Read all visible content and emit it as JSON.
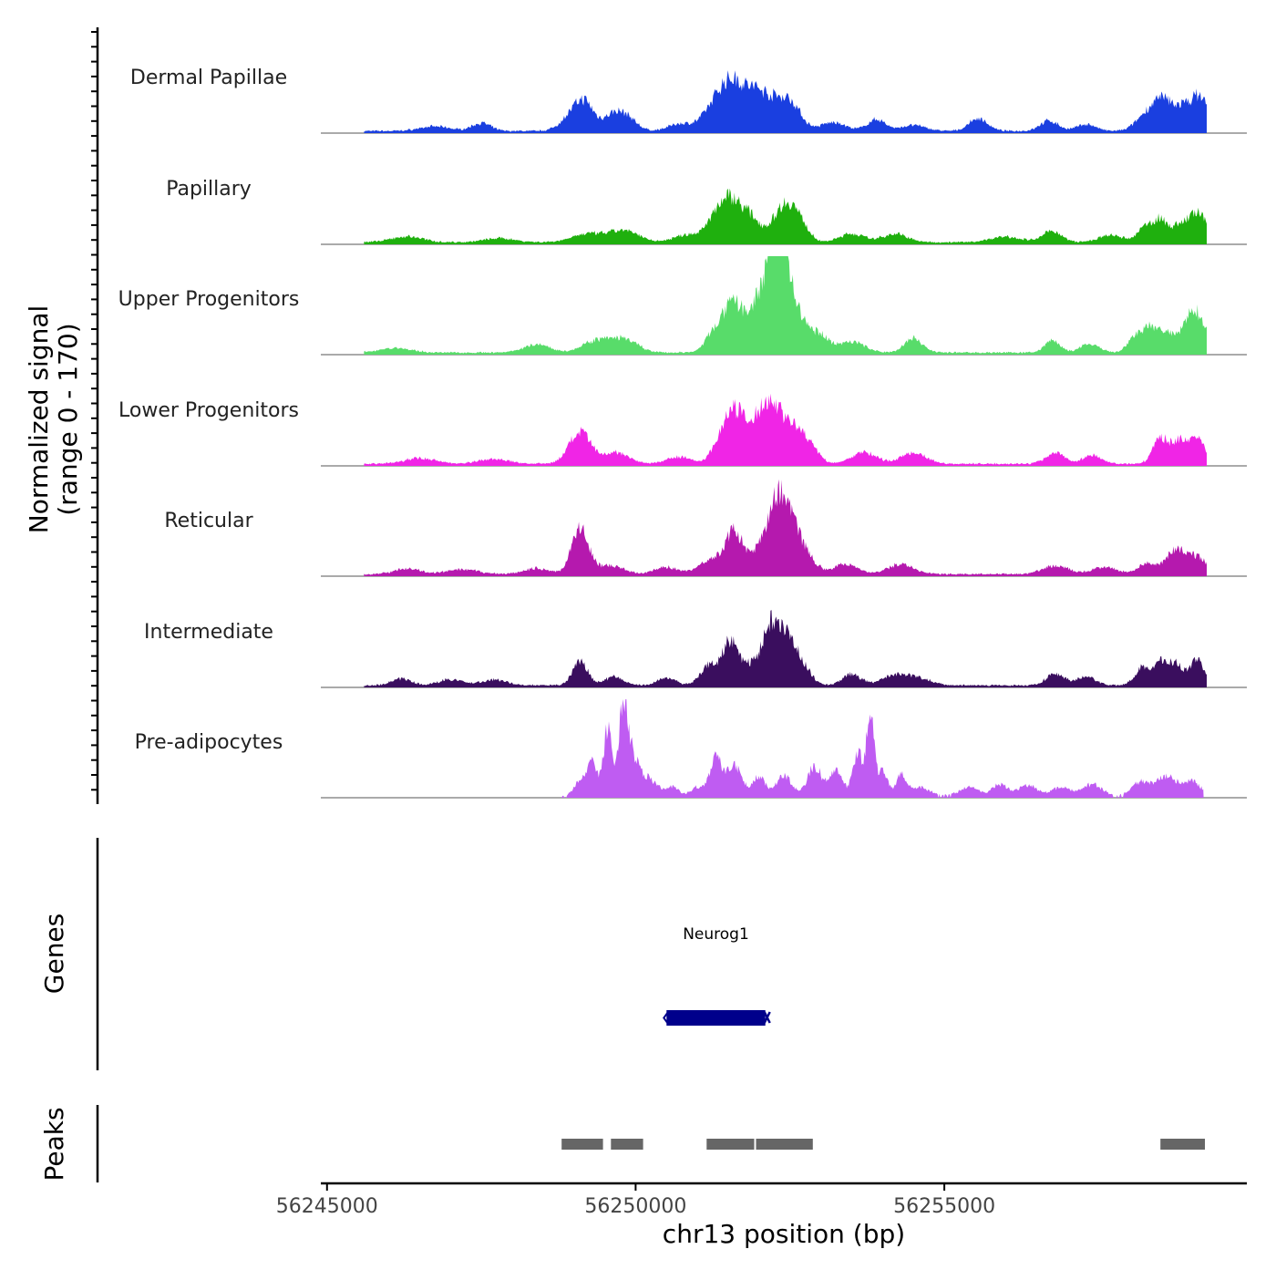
{
  "chart_data": {
    "type": "area",
    "title": "",
    "ylabel_line1": "Normalized signal",
    "ylabel_line2": "(range 0 - 170)",
    "ylim": [
      0,
      170
    ],
    "xlabel": "chr13 position (bp)",
    "xlim": [
      56244900,
      56259900
    ],
    "x_ticks": [
      56245000,
      56250000,
      56255000
    ],
    "x_tick_labels": [
      "56245000",
      "56250000",
      "56255000"
    ],
    "tracks_section_labels": {
      "genes": "Genes",
      "peaks": "Peaks"
    },
    "series": [
      {
        "name": "Dermal Papillae",
        "color": "#1a3fe0",
        "peaks": [
          [
            56246750,
            8,
            250
          ],
          [
            56247500,
            14,
            150
          ],
          [
            56249050,
            40,
            200
          ],
          [
            56249200,
            22,
            120
          ],
          [
            56249650,
            30,
            180
          ],
          [
            56249900,
            15,
            150
          ],
          [
            56250700,
            12,
            180
          ],
          [
            56251400,
            60,
            250
          ],
          [
            56251650,
            48,
            200
          ],
          [
            56251950,
            30,
            150
          ],
          [
            56252250,
            55,
            250
          ],
          [
            56252550,
            25,
            150
          ],
          [
            56253200,
            15,
            200
          ],
          [
            56253900,
            20,
            150
          ],
          [
            56254500,
            10,
            200
          ],
          [
            56255550,
            22,
            150
          ],
          [
            56256700,
            18,
            150
          ],
          [
            56257300,
            12,
            150
          ],
          [
            56258300,
            30,
            180
          ],
          [
            56258550,
            42,
            150
          ],
          [
            56258850,
            35,
            150
          ],
          [
            56259150,
            58,
            150
          ]
        ]
      },
      {
        "name": "Papillary",
        "color": "#1fb00e",
        "peaks": [
          [
            56246300,
            10,
            250
          ],
          [
            56247800,
            7,
            250
          ],
          [
            56249200,
            14,
            250
          ],
          [
            56249800,
            20,
            250
          ],
          [
            56250800,
            12,
            200
          ],
          [
            56251350,
            48,
            200
          ],
          [
            56251600,
            52,
            180
          ],
          [
            56251900,
            32,
            150
          ],
          [
            56252400,
            62,
            180
          ],
          [
            56252650,
            28,
            150
          ],
          [
            56253500,
            15,
            200
          ],
          [
            56254200,
            15,
            200
          ],
          [
            56256000,
            10,
            250
          ],
          [
            56256750,
            20,
            150
          ],
          [
            56257700,
            12,
            200
          ],
          [
            56258250,
            25,
            120
          ],
          [
            56258500,
            38,
            120
          ],
          [
            56258800,
            25,
            120
          ],
          [
            56259100,
            52,
            150
          ]
        ]
      },
      {
        "name": "Upper Progenitors",
        "color": "#58dc6a",
        "peaks": [
          [
            56246100,
            8,
            250
          ],
          [
            56248400,
            15,
            200
          ],
          [
            56249400,
            22,
            250
          ],
          [
            56249850,
            20,
            200
          ],
          [
            56251300,
            40,
            150
          ],
          [
            56251600,
            80,
            150
          ],
          [
            56251950,
            50,
            150
          ],
          [
            56252300,
            125,
            120
          ],
          [
            56252450,
            95,
            250
          ],
          [
            56252200,
            60,
            200
          ],
          [
            56253000,
            25,
            150
          ],
          [
            56253500,
            20,
            200
          ],
          [
            56254500,
            25,
            150
          ],
          [
            56256750,
            22,
            120
          ],
          [
            56257350,
            15,
            150
          ],
          [
            56258100,
            28,
            120
          ],
          [
            56258350,
            40,
            120
          ],
          [
            56258600,
            30,
            120
          ],
          [
            56259050,
            75,
            180
          ]
        ]
      },
      {
        "name": "Lower Progenitors",
        "color": "#f025e6",
        "peaks": [
          [
            56246500,
            10,
            250
          ],
          [
            56247700,
            8,
            250
          ],
          [
            56249100,
            55,
            180
          ],
          [
            56249700,
            20,
            200
          ],
          [
            56250700,
            12,
            200
          ],
          [
            56251400,
            45,
            150
          ],
          [
            56251650,
            85,
            150
          ],
          [
            56251950,
            40,
            120
          ],
          [
            56252150,
            80,
            150
          ],
          [
            56252450,
            70,
            200
          ],
          [
            56252800,
            30,
            150
          ],
          [
            56253700,
            20,
            200
          ],
          [
            56254500,
            20,
            200
          ],
          [
            56256800,
            20,
            150
          ],
          [
            56257400,
            15,
            150
          ],
          [
            56258500,
            45,
            120
          ],
          [
            56258800,
            40,
            120
          ],
          [
            56259100,
            45,
            120
          ]
        ]
      },
      {
        "name": "Reticular",
        "color": "#b519ae",
        "peaks": [
          [
            56246300,
            10,
            200
          ],
          [
            56247200,
            8,
            250
          ],
          [
            56248400,
            10,
            200
          ],
          [
            56249100,
            80,
            140
          ],
          [
            56249600,
            15,
            200
          ],
          [
            56250500,
            12,
            200
          ],
          [
            56251200,
            25,
            180
          ],
          [
            56251600,
            75,
            150
          ],
          [
            56252050,
            45,
            150
          ],
          [
            56252300,
            90,
            150
          ],
          [
            56252500,
            80,
            180
          ],
          [
            56252800,
            20,
            150
          ],
          [
            56253400,
            18,
            200
          ],
          [
            56254300,
            18,
            200
          ],
          [
            56256800,
            15,
            200
          ],
          [
            56257600,
            12,
            200
          ],
          [
            56258300,
            20,
            150
          ],
          [
            56258750,
            42,
            150
          ],
          [
            56259100,
            30,
            150
          ]
        ]
      },
      {
        "name": "Intermediate",
        "color": "#3a0e5e",
        "peaks": [
          [
            56246200,
            12,
            150
          ],
          [
            56247000,
            10,
            200
          ],
          [
            56247700,
            10,
            200
          ],
          [
            56249100,
            42,
            120
          ],
          [
            56249650,
            15,
            150
          ],
          [
            56250500,
            12,
            150
          ],
          [
            56251200,
            35,
            150
          ],
          [
            56251550,
            80,
            130
          ],
          [
            56251850,
            25,
            100
          ],
          [
            56252150,
            75,
            150
          ],
          [
            56252400,
            85,
            180
          ],
          [
            56252700,
            25,
            150
          ],
          [
            56253500,
            20,
            150
          ],
          [
            56254200,
            18,
            200
          ],
          [
            56254600,
            12,
            200
          ],
          [
            56256800,
            20,
            150
          ],
          [
            56257300,
            15,
            150
          ],
          [
            56258200,
            30,
            120
          ],
          [
            56258500,
            38,
            120
          ],
          [
            56258750,
            35,
            120
          ],
          [
            56259100,
            45,
            120
          ]
        ]
      },
      {
        "name": "Pre-adipocytes",
        "color": "#bf5cf2",
        "range": [
          56248800,
          56259200
        ],
        "peaks": [
          [
            56249100,
            25,
            100
          ],
          [
            56249300,
            60,
            80
          ],
          [
            56249550,
            120,
            70
          ],
          [
            56249800,
            160,
            70
          ],
          [
            56249950,
            60,
            100
          ],
          [
            56250200,
            30,
            150
          ],
          [
            56250600,
            15,
            100
          ],
          [
            56251000,
            15,
            100
          ],
          [
            56251300,
            65,
            100
          ],
          [
            56251600,
            55,
            120
          ],
          [
            56252000,
            35,
            100
          ],
          [
            56252400,
            35,
            120
          ],
          [
            56252900,
            50,
            120
          ],
          [
            56253250,
            45,
            100
          ],
          [
            56253600,
            75,
            80
          ],
          [
            56253800,
            140,
            60
          ],
          [
            56254000,
            45,
            80
          ],
          [
            56254300,
            35,
            80
          ],
          [
            56254600,
            15,
            150
          ],
          [
            56255400,
            15,
            150
          ],
          [
            56255900,
            20,
            120
          ],
          [
            56256350,
            18,
            150
          ],
          [
            56256900,
            15,
            150
          ],
          [
            56257400,
            20,
            150
          ],
          [
            56258200,
            25,
            150
          ],
          [
            56258600,
            35,
            150
          ],
          [
            56259000,
            25,
            150
          ]
        ]
      }
    ],
    "genes": [
      {
        "name": "Neurog1",
        "start": 56250500,
        "end": 56252100,
        "strand": "-",
        "color": "#00008b"
      }
    ],
    "peaks": [
      {
        "start": 56248800,
        "end": 56249500
      },
      {
        "start": 56249600,
        "end": 56250150
      },
      {
        "start": 56251150,
        "end": 56251950
      },
      {
        "start": 56251950,
        "end": 56252900
      },
      {
        "start": 56258500,
        "end": 56259250
      }
    ],
    "track_signal_range": [
      56245600,
      56259250
    ],
    "peak_color": "#666666"
  }
}
